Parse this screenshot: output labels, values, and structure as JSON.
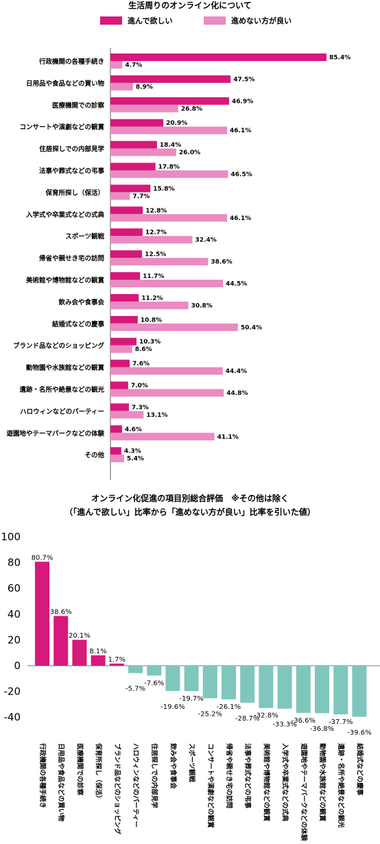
{
  "colors": {
    "want": "#d6197a",
    "not_want": "#ea8bc2",
    "positive": "#d6197a",
    "negative": "#7fc6bd"
  },
  "chart_data": [
    {
      "type": "bar",
      "orientation": "horizontal",
      "title": "生活周りのオンライン化について",
      "legend_position": "top",
      "categories": [
        "行政機関の各種手続き",
        "日用品や食品などの買い物",
        "医療機関での診察",
        "コンサートや演劇などの観賞",
        "住居探しでの内部見学",
        "法事や葬式などの弔事",
        "保育所探し（保活）",
        "入学式や卒業式などの式典",
        "スポーツ観戦",
        "帰省や親せき宅の訪問",
        "美術館や博物館などの観賞",
        "飲み会や食事会",
        "結婚式などの慶事",
        "ブランド品などのショッピング",
        "動物園や水族館などの観賞",
        "遺跡・名所や絶景などの観光",
        "ハロウィンなどのパーティー",
        "遊園地やテーマパークなどの体験",
        "その他"
      ],
      "series": [
        {
          "name": "進んで欲しい",
          "values": [
            85.4,
            47.5,
            46.9,
            20.9,
            18.4,
            17.8,
            15.8,
            12.8,
            12.7,
            12.5,
            11.7,
            11.2,
            10.8,
            10.3,
            7.6,
            7.0,
            7.3,
            4.6,
            4.3
          ]
        },
        {
          "name": "進めない方が良い",
          "values": [
            4.7,
            8.9,
            26.8,
            46.1,
            26.0,
            46.5,
            7.7,
            46.1,
            32.4,
            38.6,
            44.5,
            30.8,
            50.4,
            8.6,
            44.4,
            44.8,
            13.1,
            41.1,
            5.4
          ]
        }
      ],
      "value_labels": {
        "want": [
          "85.4%",
          "47.5%",
          "46.9%",
          "20.9%",
          "18.4%",
          "17.8%",
          "15.8%",
          "12.8%",
          "12.7%",
          "12.5%",
          "11.7%",
          "11.2%",
          "10.8%",
          "10.3%",
          "7.6%",
          "7.0%",
          "7.3%",
          "4.6%",
          "4.3%"
        ],
        "not_want": [
          "4.7%",
          "8.9%",
          "26.8%",
          "46.1%",
          "26.0%",
          "46.5%",
          "7.7%",
          "46.1%",
          "32.4%",
          "38.6%",
          "44.5%",
          "30.8%",
          "50.4%",
          "8.6%",
          "44.4%",
          "44.8%",
          "13.1%",
          "41.1%",
          "5.4%"
        ]
      }
    },
    {
      "type": "bar",
      "title": "オンライン化促進の項目別総合評価　※その他は除く",
      "subtitle": "（「進んで欲しい」比率から「進めない方が良い」比率を引いた値）",
      "categories": [
        "行政機関の各種手続き",
        "日用品や食品などの買い物",
        "医療機関での診察",
        "保育所探し（保活）",
        "ブランド品などのショッピング",
        "ハロウィンなどのパーティー",
        "住居探しでの内部見学",
        "飲み会や食事会",
        "スポーツ観戦",
        "コンサートや演劇などの観賞",
        "帰省や親せき宅の訪問",
        "法事や葬式などの弔事",
        "美術館や博物館などの観賞",
        "入学式や卒業式などの式典",
        "遊園地やテーマパークなどの体験",
        "動物園や水族館などの観賞",
        "遺跡・名所や絶景などの観光",
        "結婚式などの慶事"
      ],
      "values": [
        80.7,
        38.6,
        20.1,
        8.1,
        1.7,
        -5.7,
        -7.6,
        -19.6,
        -19.7,
        -25.2,
        -26.1,
        -28.7,
        -32.8,
        -33.3,
        -36.6,
        -36.8,
        -37.7,
        -39.6
      ],
      "value_labels": [
        "80.7%",
        "38.6%",
        "20.1%",
        "8.1%",
        "1.7%",
        "-5.7%",
        "-7.6%",
        "-19.6%",
        "-19.7%",
        "-25.2%",
        "-26.1%",
        "-28.7%",
        "-32.8%",
        "-33.3%",
        "-36.6%",
        "-36.8%",
        "-37.7%",
        "-39.6%"
      ],
      "ylim": [
        -40,
        100
      ],
      "yticks": [
        "100",
        "80",
        "60",
        "40",
        "20",
        "0",
        "-20",
        "-40"
      ],
      "grid": false
    }
  ]
}
